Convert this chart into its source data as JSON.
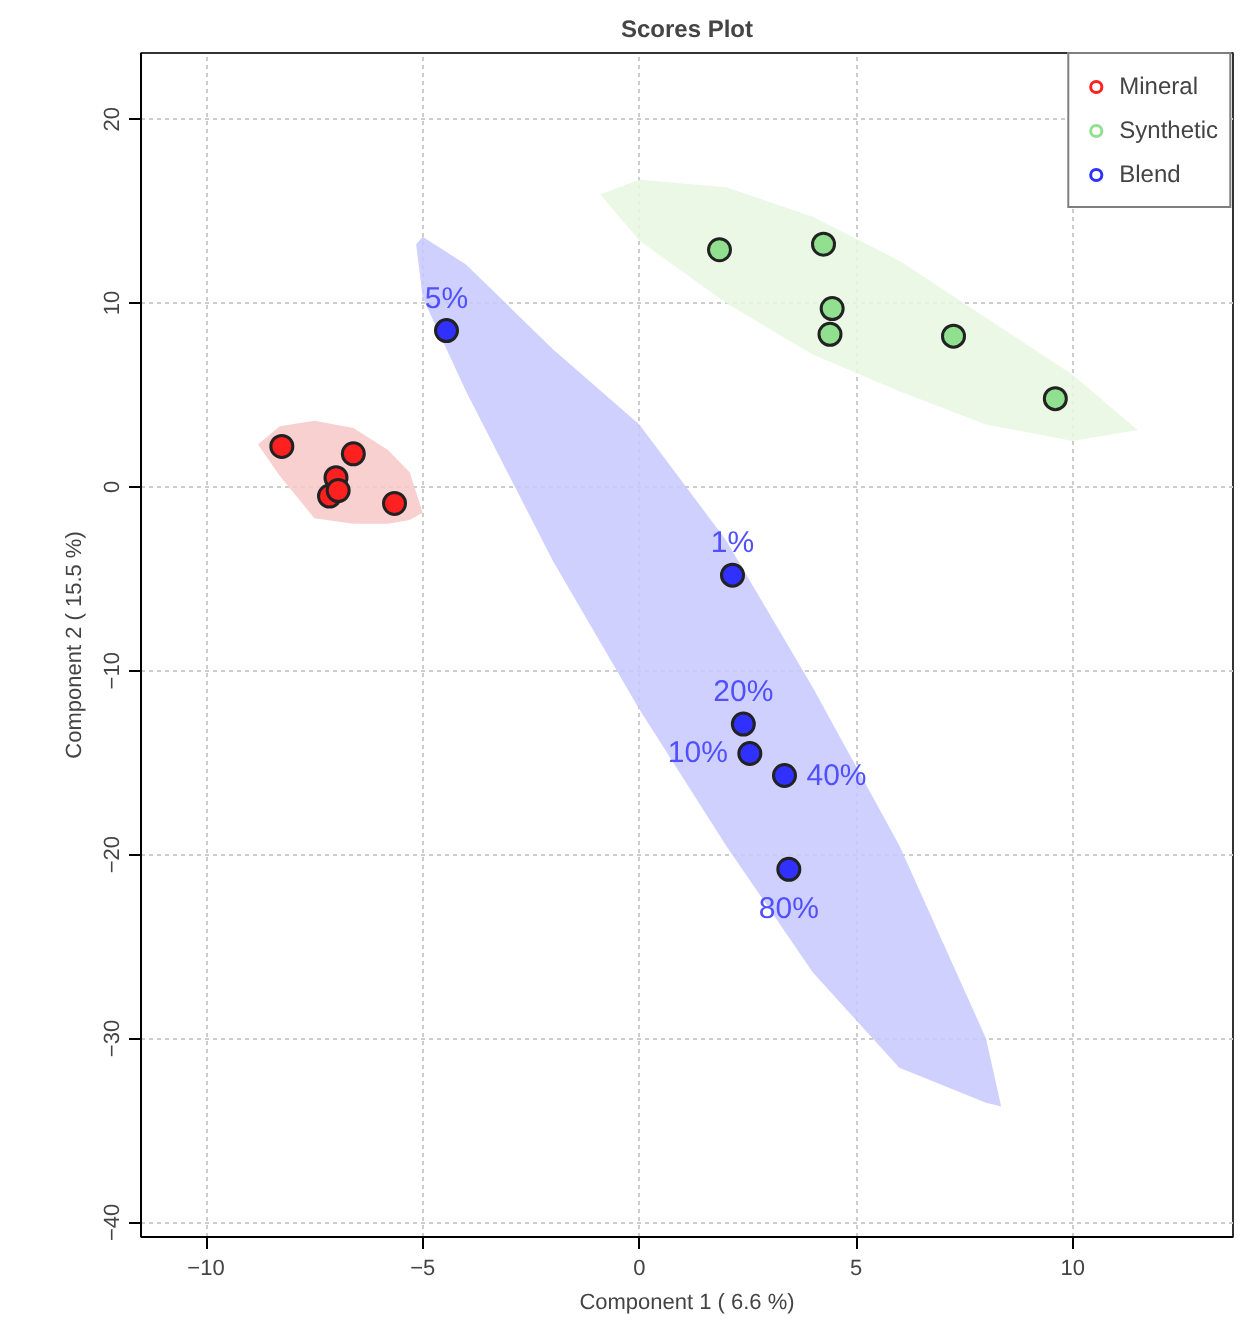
{
  "chart_data": {
    "type": "scatter",
    "title": "Scores Plot",
    "xlabel": "Component 1 ( 6.6 %)",
    "ylabel": "Component 2 ( 15.5 %)",
    "xlim": [
      -11.5,
      13.7
    ],
    "ylim": [
      -40.8,
      23.6
    ],
    "xticks": [
      -10,
      -5,
      0,
      5,
      10
    ],
    "yticks": [
      -40,
      -30,
      -20,
      -10,
      0,
      10,
      20
    ],
    "grid": true,
    "legend": "top right",
    "marker": "circle",
    "series": [
      {
        "type": "area",
        "marker": "none",
        "color": "#f8c8c8",
        "x": [
          -8.8,
          -8.3,
          -7.5,
          -6.6,
          -5.8,
          -5.3,
          -5.0,
          -5.3,
          -5.8,
          -6.6,
          -7.5,
          -8.3
        ],
        "values": [
          2.3,
          3.3,
          3.6,
          3.2,
          2.0,
          0.8,
          -1.4,
          -1.8,
          -2.0,
          -2.0,
          -1.7,
          0.6
        ]
      },
      {
        "type": "area",
        "marker": "none",
        "color": "#e6f7e0",
        "x": [
          -0.9,
          0,
          2,
          4,
          6,
          8,
          10,
          11.5,
          10,
          8,
          6,
          4,
          2,
          0
        ],
        "values": [
          15.9,
          16.7,
          16.3,
          14.7,
          12.3,
          9.2,
          6.1,
          3.1,
          2.5,
          3.4,
          5.2,
          7.2,
          10.0,
          13.4
        ]
      },
      {
        "type": "area",
        "marker": "none",
        "color": "#c8c8ff",
        "x": [
          -5.15,
          -5,
          -4,
          -2,
          0,
          2,
          4,
          6,
          8,
          8.35,
          8,
          6,
          4,
          2,
          0,
          -2,
          -4,
          -5
        ],
        "values": [
          13.2,
          13.6,
          12.1,
          7.5,
          3.4,
          -2.9,
          -10.9,
          -19.5,
          -30.0,
          -33.7,
          -33.5,
          -31.6,
          -26.4,
          -19.5,
          -12.1,
          -4.0,
          5.2,
          10.3
        ]
      },
      {
        "name": "Mineral",
        "color": "#ff2020",
        "x": [
          -8.25,
          -6.6,
          -7.0,
          -7.15,
          -6.95,
          -5.65
        ],
        "values": [
          2.2,
          1.8,
          0.5,
          -0.5,
          -0.2,
          -0.9
        ]
      },
      {
        "name": "Synthetic",
        "color": "#90e090",
        "x": [
          1.85,
          4.25,
          4.45,
          4.4,
          7.25,
          9.6
        ],
        "values": [
          12.9,
          13.2,
          9.7,
          8.3,
          8.2,
          4.8
        ]
      },
      {
        "name": "Blend",
        "color": "#3030ff",
        "x": [
          -4.45,
          2.15,
          2.4,
          2.55,
          3.35,
          3.45
        ],
        "values": [
          8.5,
          -4.8,
          -12.9,
          -14.5,
          -15.7,
          -20.8
        ]
      }
    ],
    "annotations": [
      {
        "text": "5%",
        "x": -4.45,
        "y": 8.5
      },
      {
        "text": "1%",
        "x": 2.15,
        "y": -4.8
      },
      {
        "text": "20%",
        "x": 2.4,
        "y": -12.9
      },
      {
        "text": "10%",
        "x": 2.55,
        "y": -14.5
      },
      {
        "text": "40%",
        "x": 3.35,
        "y": -15.7
      },
      {
        "text": "80%",
        "x": 3.45,
        "y": -20.8
      }
    ]
  }
}
